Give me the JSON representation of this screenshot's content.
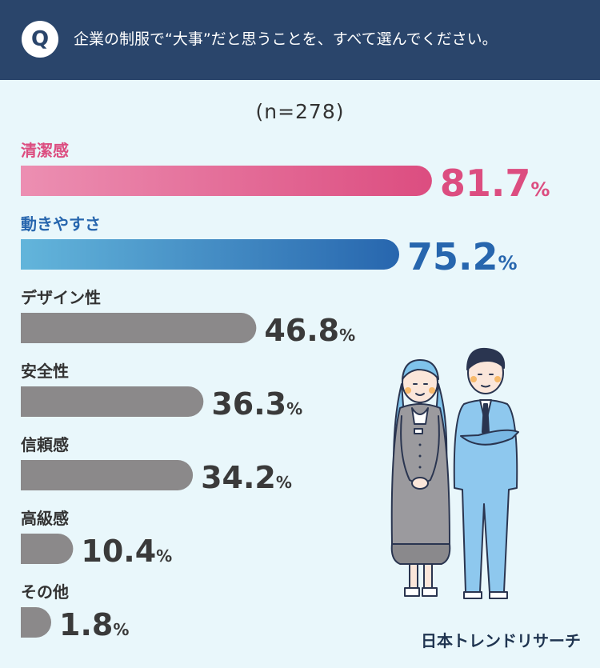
{
  "header": {
    "badge": "Q",
    "question": "企業の制服で“大事”だと思うことを、すべて選んでください。"
  },
  "sample_size": "(n=278)",
  "brand": "日本トレンドリサーチ",
  "colors": {
    "header_bg": "#2a456b",
    "background": "#e9f7fb",
    "pink_start": "#ec8fb2",
    "pink_end": "#dc4d80",
    "blue_start": "#63b5db",
    "blue_end": "#2766ae",
    "gray": "#8b898a",
    "value_dark": "#3a3a3a"
  },
  "chart_data": {
    "type": "bar",
    "orientation": "horizontal",
    "unit": "%",
    "categories": [
      "清潔感",
      "動きやすさ",
      "デザイン性",
      "安全性",
      "信頼感",
      "高級感",
      "その他"
    ],
    "values": [
      81.7,
      75.2,
      46.8,
      36.3,
      34.2,
      10.4,
      1.8
    ],
    "value_labels": [
      "81.7",
      "75.2",
      "46.8",
      "36.3",
      "34.2",
      "10.4",
      "1.8"
    ],
    "bar_styles": [
      "pink",
      "blue",
      "gray",
      "gray",
      "gray",
      "gray",
      "gray"
    ],
    "label_colors": [
      "#dc4d80",
      "#2766ae",
      "#333333",
      "#333333",
      "#333333",
      "#333333",
      "#333333"
    ],
    "xlim": [
      0,
      100
    ],
    "grid": false,
    "legend": "none"
  }
}
